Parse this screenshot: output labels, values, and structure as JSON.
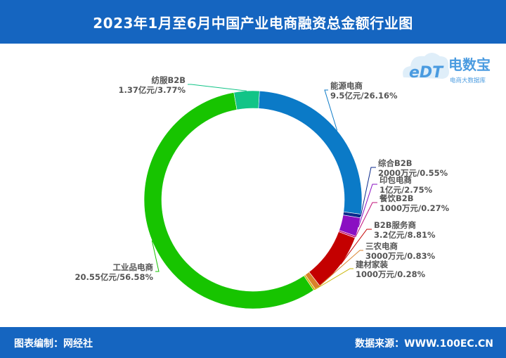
{
  "header": {
    "title": "2023年1月至6月中国产业电商融资总金额行业图"
  },
  "footer": {
    "left": "图表编制：网经社",
    "right": "数据来源：WWW.100EC.CN"
  },
  "logo": {
    "mark": "eDT",
    "name": "电数宝",
    "sub": "电商大数据库"
  },
  "colors": {
    "header_bg": "#1565c0"
  },
  "chart_data": {
    "type": "pie",
    "donut": true,
    "title": "2023年1月至6月中国产业电商融资总金额行业图",
    "slices": [
      {
        "name": "能源电商",
        "amount": "9.5亿元",
        "percent": 26.16,
        "value_label": "9.5亿元/26.16%",
        "color": "#0b7ac7"
      },
      {
        "name": "综合B2B",
        "amount": "2000万元",
        "percent": 0.55,
        "value_label": "2000万元/0.55%",
        "color": "#0b2a8c"
      },
      {
        "name": "印包电商",
        "amount": "1亿元",
        "percent": 2.75,
        "value_label": "1亿元/2.75%",
        "color": "#8a0fc2"
      },
      {
        "name": "餐饮B2B",
        "amount": "1000万元",
        "percent": 0.27,
        "value_label": "1000万元/0.27%",
        "color": "#c2127a"
      },
      {
        "name": "B2B服务商",
        "amount": "3.2亿元",
        "percent": 8.81,
        "value_label": "3.2亿元/8.81%",
        "color": "#c40000"
      },
      {
        "name": "三农电商",
        "amount": "3000万元",
        "percent": 0.83,
        "value_label": "3000万元/0.83%",
        "color": "#d9822b"
      },
      {
        "name": "建材家装",
        "amount": "1000万元",
        "percent": 0.28,
        "value_label": "1000万元/0.28%",
        "color": "#c8b400"
      },
      {
        "name": "工业品电商",
        "amount": "20.55亿元",
        "percent": 56.58,
        "value_label": "20.55亿元/56.58%",
        "color": "#17c400"
      },
      {
        "name": "纺服B2B",
        "amount": "1.37亿元",
        "percent": 3.77,
        "value_label": "1.37亿元/3.77%",
        "color": "#12c487"
      }
    ]
  }
}
